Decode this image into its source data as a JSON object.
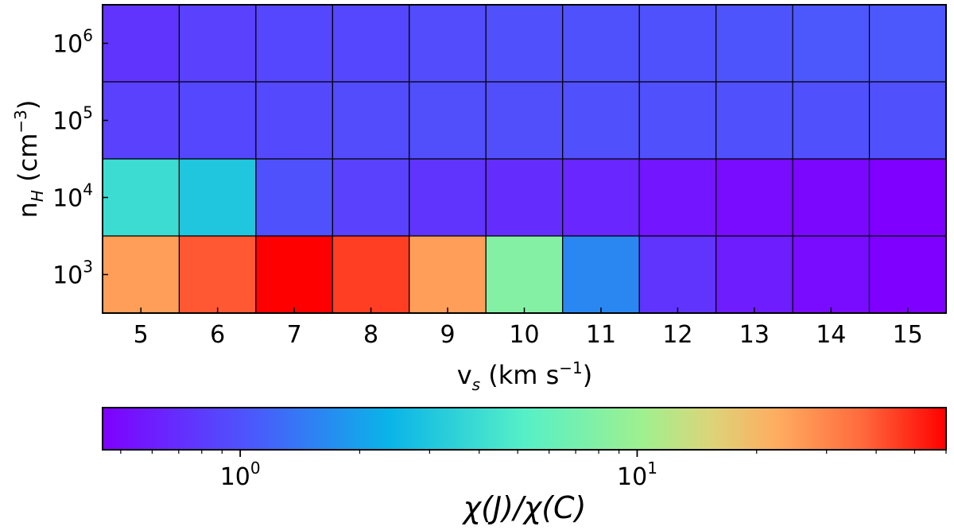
{
  "chart_data": {
    "type": "heatmap",
    "x_categories": [
      "5",
      "6",
      "7",
      "8",
      "9",
      "10",
      "11",
      "12",
      "13",
      "14",
      "15"
    ],
    "y_categories": [
      {
        "base": "10",
        "exp": "6",
        "value": 1000000
      },
      {
        "base": "10",
        "exp": "5",
        "value": 100000
      },
      {
        "base": "10",
        "exp": "4",
        "value": 10000
      },
      {
        "base": "10",
        "exp": "3",
        "value": 1000
      }
    ],
    "values": [
      [
        0.75,
        0.85,
        0.9,
        0.9,
        0.95,
        0.98,
        1.0,
        1.0,
        1.02,
        1.05,
        1.05
      ],
      [
        0.85,
        0.9,
        0.92,
        0.95,
        0.97,
        0.97,
        0.98,
        0.98,
        0.98,
        0.98,
        0.98
      ],
      [
        4.0,
        3.0,
        1.0,
        0.85,
        0.75,
        0.7,
        0.65,
        0.55,
        0.5,
        0.48,
        0.45
      ],
      [
        25,
        40,
        60,
        45,
        25,
        8,
        1.6,
        0.75,
        0.6,
        0.5,
        0.45
      ]
    ],
    "xlabel": {
      "main": "v",
      "sub": "s",
      "rest": " (km s",
      "sup": "−1",
      "close": ")"
    },
    "ylabel": {
      "main": "n",
      "sub": "H",
      "rest": " (cm",
      "sup": "−3",
      "close": ")"
    },
    "colorbar": {
      "scale": "log",
      "range": [
        0.45,
        60
      ],
      "colormap": "rainbow",
      "ticks": [
        {
          "base": "10",
          "exp": "0",
          "value": 1
        },
        {
          "base": "10",
          "exp": "1",
          "value": 10
        }
      ],
      "label": "χ(J)/χ(C)"
    }
  }
}
